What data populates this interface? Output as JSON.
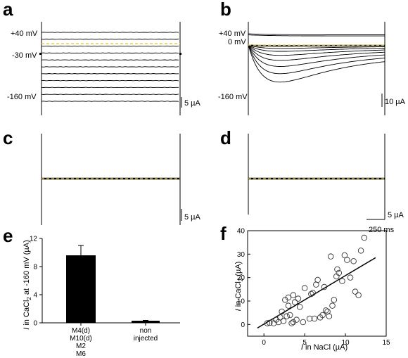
{
  "panels": {
    "a": {
      "letter": "a",
      "labels": [
        "+40 mV",
        "-30 mV",
        "-160 mV"
      ],
      "scale_label": "5 µA",
      "trace_count": 11
    },
    "b": {
      "letter": "b",
      "labels": [
        "+40 mV",
        "0 mV",
        "-160 mV"
      ],
      "scale_label": "10 µA",
      "trace_count": 11
    },
    "c": {
      "letter": "c",
      "scale_label": "5 µA"
    },
    "d": {
      "letter": "d",
      "scale_label": "5 µA",
      "time_label": "250 ms"
    }
  },
  "chart_data": [
    {
      "panel": "e",
      "letter": "e",
      "type": "bar",
      "categories": [
        [
          "M4(d)",
          "M10(d)",
          "M2",
          "M6"
        ],
        [
          "non",
          "injected"
        ]
      ],
      "values": [
        9.6,
        0.3
      ],
      "errors": [
        1.4,
        0.05
      ],
      "ylabel_main": "I",
      "ylabel_rest": " in CaCl",
      "ylabel_sub": "2",
      "ylabel_tail": " at -160 mV (µA)",
      "ylim": [
        0,
        12
      ],
      "yticks": [
        "0",
        "4",
        "8",
        "12"
      ],
      "bar_color": "#000000"
    },
    {
      "panel": "f",
      "letter": "f",
      "type": "scatter",
      "xlabel_main": "I",
      "xlabel_rest": " in NaCl (µA)",
      "ylabel_main": "I",
      "ylabel_rest": " in CaCl",
      "ylabel_sub": "2",
      "ylabel_tail": " (µA)",
      "xlim": [
        -2,
        15
      ],
      "ylim": [
        -5,
        40
      ],
      "xticks": [
        "0",
        "5",
        "10",
        "15"
      ],
      "yticks": [
        "0",
        "10",
        "20",
        "30",
        "40"
      ],
      "points": [
        [
          0.4,
          0.5
        ],
        [
          0.7,
          0.7
        ],
        [
          1.2,
          0.5
        ],
        [
          1.5,
          2.0
        ],
        [
          1.8,
          1.0
        ],
        [
          2.0,
          3.0
        ],
        [
          2.2,
          5.5
        ],
        [
          2.4,
          1.5
        ],
        [
          2.6,
          10.5
        ],
        [
          2.8,
          3.5
        ],
        [
          3.0,
          8.0
        ],
        [
          3.0,
          11.5
        ],
        [
          3.2,
          4.0
        ],
        [
          3.4,
          0.5
        ],
        [
          3.6,
          1.0
        ],
        [
          3.6,
          12.5
        ],
        [
          3.8,
          9.5
        ],
        [
          4.0,
          2.0
        ],
        [
          4.2,
          11.0
        ],
        [
          4.4,
          7.5
        ],
        [
          4.8,
          1.0
        ],
        [
          5.0,
          15.5
        ],
        [
          5.6,
          2.5
        ],
        [
          5.8,
          13.0
        ],
        [
          6.0,
          13.5
        ],
        [
          6.2,
          2.5
        ],
        [
          6.4,
          17.0
        ],
        [
          6.6,
          19.0
        ],
        [
          6.9,
          3.0
        ],
        [
          7.2,
          4.0
        ],
        [
          7.4,
          16.0
        ],
        [
          7.6,
          6.0
        ],
        [
          7.8,
          5.5
        ],
        [
          8.0,
          3.5
        ],
        [
          8.2,
          29.0
        ],
        [
          8.4,
          8.0
        ],
        [
          8.6,
          10.5
        ],
        [
          8.9,
          20.5
        ],
        [
          9.0,
          23.5
        ],
        [
          9.2,
          22.0
        ],
        [
          9.6,
          18.5
        ],
        [
          9.9,
          29.5
        ],
        [
          10.2,
          27.5
        ],
        [
          10.6,
          20.0
        ],
        [
          11.2,
          14.0
        ],
        [
          11.6,
          12.5
        ],
        [
          11.9,
          31.5
        ],
        [
          12.3,
          37.0
        ],
        [
          11.0,
          27.0
        ]
      ],
      "fit_line": {
        "x": [
          -0.8,
          13.7
        ],
        "y": [
          -1.5,
          28.5
        ]
      }
    }
  ]
}
